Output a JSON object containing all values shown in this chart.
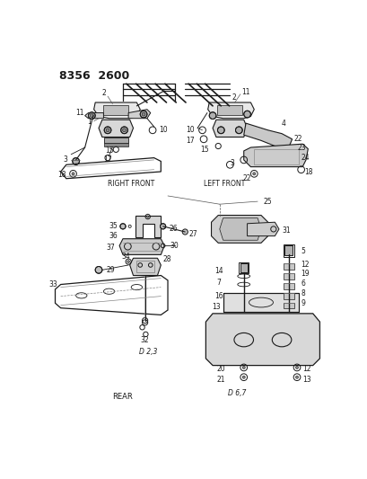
{
  "title": "8356 2600",
  "bg": "#ffffff",
  "fg": "#1a1a1a",
  "gray": "#888888",
  "lgray": "#bbbbbb",
  "sections": {
    "right_front_label": "RIGHT FRONT",
    "left_front_label": "LEFT FRONT",
    "rear_label": "REAR",
    "d23_label": "D 2,3",
    "d67_label": "D 6,7"
  }
}
